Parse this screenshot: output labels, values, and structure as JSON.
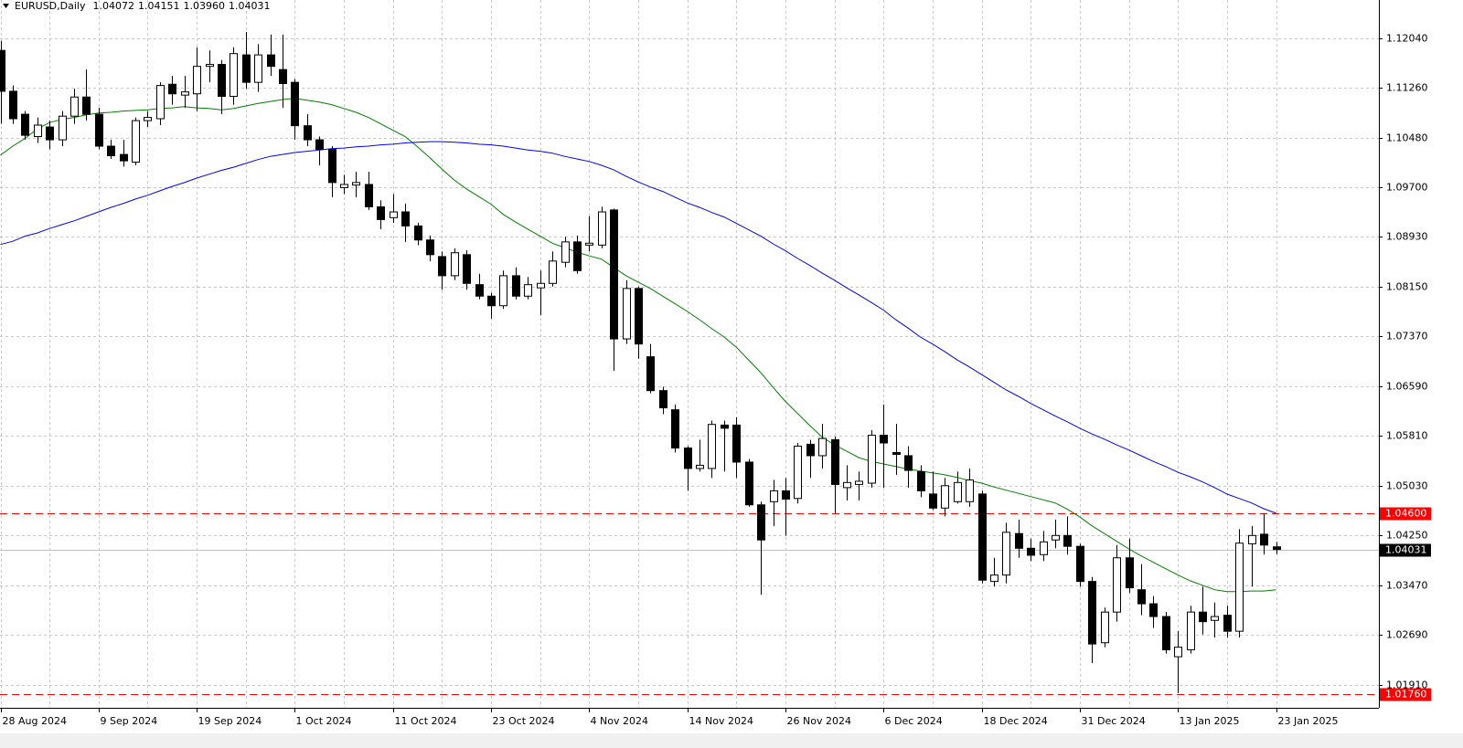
{
  "chart_data": {
    "type": "candlestick",
    "title": "EURUSD,Daily",
    "header_values": [
      "1.04072",
      "1.04151",
      "1.03960",
      "1.04031"
    ],
    "categories": [
      "28 Aug 2024",
      null,
      null,
      null,
      null,
      null,
      null,
      null,
      "9 Sep 2024",
      null,
      null,
      null,
      null,
      null,
      null,
      null,
      "19 Sep 2024",
      null,
      null,
      null,
      null,
      null,
      null,
      null,
      "1 Oct 2024",
      null,
      null,
      null,
      null,
      null,
      null,
      null,
      "11 Oct 2024",
      null,
      null,
      null,
      null,
      null,
      null,
      null,
      "23 Oct 2024",
      null,
      null,
      null,
      null,
      null,
      null,
      null,
      "4 Nov 2024",
      null,
      null,
      null,
      null,
      null,
      null,
      null,
      "14 Nov 2024",
      null,
      null,
      null,
      null,
      null,
      null,
      null,
      "26 Nov 2024",
      null,
      null,
      null,
      null,
      null,
      null,
      null,
      "6 Dec 2024",
      null,
      null,
      null,
      null,
      null,
      null,
      null,
      "18 Dec 2024",
      null,
      null,
      null,
      null,
      null,
      null,
      null,
      "31 Dec 2024",
      null,
      null,
      null,
      null,
      null,
      null,
      null,
      "13 Jan 2025",
      null,
      null,
      null,
      null,
      null,
      null,
      null,
      "23 Jan 2025"
    ],
    "open": [
      1.1185,
      1.1121,
      1.1085,
      1.105,
      1.1065,
      1.1045,
      1.1082,
      1.1112,
      1.1085,
      1.1035,
      1.1022,
      1.101,
      1.1075,
      1.1078,
      1.1132,
      1.1115,
      1.1117,
      1.116,
      1.1163,
      1.1113,
      1.1178,
      1.1135,
      1.1178,
      1.1155,
      1.1135,
      1.1067,
      1.1045,
      1.103,
      1.097,
      1.0974,
      1.0975,
      1.094,
      1.0923,
      1.0932,
      1.091,
      1.0888,
      1.0862,
      1.0832,
      1.0865,
      1.0818,
      1.08,
      1.0785,
      1.0832,
      1.08,
      1.0813,
      1.082,
      1.0853,
      1.0885,
      1.088,
      1.088,
      1.0935,
      1.0733,
      1.0812,
      1.0705,
      1.0652,
      1.0622,
      1.0562,
      1.053,
      1.053,
      1.0598,
      1.0598,
      1.054,
      1.0473,
      1.0478,
      1.0495,
      1.0483,
      1.0568,
      1.055,
      1.0575,
      1.05,
      1.0505,
      1.0507,
      1.0582,
      1.0555,
      1.055,
      1.0525,
      1.049,
      1.0468,
      1.0478,
      1.0478,
      1.049,
      1.0353,
      1.0363,
      1.0428,
      1.0405,
      1.0395,
      1.0418,
      1.0425,
      1.0408,
      1.0353,
      1.0257,
      1.0305,
      1.039,
      1.034,
      1.0318,
      1.0298,
      1.0235,
      1.0246,
      1.0305,
      1.0292,
      1.03,
      1.0275,
      1.0412,
      1.0427,
      1.04072
    ],
    "high": [
      1.12,
      1.113,
      1.109,
      1.108,
      1.1075,
      1.109,
      1.1125,
      1.1155,
      1.1095,
      1.1045,
      1.1045,
      1.108,
      1.109,
      1.1135,
      1.1145,
      1.1145,
      1.119,
      1.1185,
      1.117,
      1.119,
      1.1214,
      1.1195,
      1.121,
      1.121,
      1.114,
      1.1085,
      1.105,
      1.1035,
      1.099,
      1.0995,
      1.0995,
      1.095,
      1.096,
      1.0945,
      1.0915,
      1.0895,
      1.087,
      1.0875,
      1.0872,
      1.0835,
      1.0805,
      1.084,
      1.0845,
      1.083,
      1.084,
      1.087,
      1.0893,
      1.0895,
      1.0925,
      1.094,
      1.0937,
      1.0825,
      1.0815,
      1.0725,
      1.0658,
      1.063,
      1.0565,
      1.0575,
      1.0605,
      1.0605,
      1.061,
      1.0545,
      1.0478,
      1.0512,
      1.0515,
      1.057,
      1.0575,
      1.06,
      1.058,
      1.0535,
      1.0525,
      1.059,
      1.063,
      1.06,
      1.0565,
      1.0535,
      1.0525,
      1.0515,
      1.0525,
      1.053,
      1.0495,
      1.039,
      1.0445,
      1.045,
      1.042,
      1.0432,
      1.045,
      1.0455,
      1.0412,
      1.036,
      1.0312,
      1.041,
      1.042,
      1.038,
      1.033,
      1.0305,
      1.0275,
      1.0315,
      1.0345,
      1.032,
      1.0315,
      1.0435,
      1.044,
      1.046,
      1.04151
    ],
    "low": [
      1.107,
      1.107,
      1.1045,
      1.104,
      1.103,
      1.1035,
      1.107,
      1.1075,
      1.103,
      1.1015,
      1.1003,
      1.1005,
      1.1065,
      1.1068,
      1.11,
      1.1095,
      1.109,
      1.1135,
      1.1085,
      1.11,
      1.1125,
      1.112,
      1.1145,
      1.1095,
      1.1045,
      1.1035,
      1.1005,
      1.0955,
      1.096,
      1.0955,
      1.0935,
      1.0905,
      1.0915,
      1.0885,
      1.088,
      1.0855,
      1.081,
      1.0825,
      1.081,
      1.0795,
      1.0765,
      1.078,
      1.0795,
      1.0795,
      1.077,
      1.0815,
      1.0845,
      1.0835,
      1.087,
      1.0875,
      1.0683,
      1.0725,
      1.0702,
      1.0648,
      1.0615,
      1.0555,
      1.0495,
      1.0525,
      1.0515,
      1.0525,
      1.0515,
      1.047,
      1.0332,
      1.044,
      1.0425,
      1.0475,
      1.0515,
      1.053,
      1.046,
      1.048,
      1.048,
      1.05,
      1.05,
      1.052,
      1.05,
      1.0485,
      1.0465,
      1.0455,
      1.0475,
      1.047,
      1.035,
      1.0345,
      1.035,
      1.039,
      1.0385,
      1.0385,
      1.0405,
      1.0395,
      1.0345,
      1.0225,
      1.025,
      1.029,
      1.0335,
      1.03,
      1.028,
      1.024,
      1.0178,
      1.024,
      1.027,
      1.0265,
      1.0265,
      1.0265,
      1.0345,
      1.0395,
      1.0396
    ],
    "close": [
      1.1121,
      1.1078,
      1.1052,
      1.1068,
      1.1045,
      1.1082,
      1.1112,
      1.1085,
      1.1035,
      1.102,
      1.1012,
      1.1075,
      1.108,
      1.113,
      1.1117,
      1.112,
      1.116,
      1.1163,
      1.1113,
      1.118,
      1.1135,
      1.1178,
      1.116,
      1.1133,
      1.1067,
      1.1045,
      1.103,
      1.0978,
      1.0975,
      1.0978,
      1.094,
      1.092,
      1.0932,
      1.091,
      1.0888,
      1.0865,
      1.0832,
      1.0868,
      1.082,
      1.08,
      1.0785,
      1.0832,
      1.08,
      1.0818,
      1.082,
      1.0855,
      1.0885,
      1.084,
      1.0883,
      1.0932,
      1.0733,
      1.0812,
      1.0725,
      1.0652,
      1.0625,
      1.0562,
      1.053,
      1.0535,
      1.0599,
      1.0593,
      1.054,
      1.0473,
      1.0418,
      1.0495,
      1.0482,
      1.0565,
      1.055,
      1.0577,
      1.0505,
      1.0508,
      1.051,
      1.0582,
      1.057,
      1.0552,
      1.0527,
      1.0495,
      1.0468,
      1.0503,
      1.0508,
      1.0512,
      1.0355,
      1.0363,
      1.043,
      1.0405,
      1.0394,
      1.0415,
      1.0425,
      1.0408,
      1.0353,
      1.0255,
      1.0305,
      1.039,
      1.0343,
      1.0318,
      1.0298,
      1.0246,
      1.025,
      1.0305,
      1.029,
      1.0298,
      1.0275,
      1.0413,
      1.0425,
      1.041,
      1.04031
    ],
    "lines": [
      {
        "color": "#008000",
        "values": [
          1.1021,
          1.1035,
          1.1047,
          1.1062,
          1.1072,
          1.1077,
          1.108,
          1.1084,
          1.1087,
          1.1088,
          1.109,
          1.1091,
          1.1092,
          1.1094,
          1.1095,
          1.1097,
          1.1095,
          1.1094,
          1.1092,
          1.1094,
          1.1098,
          1.1102,
          1.1105,
          1.1108,
          1.111,
          1.1107,
          1.1104,
          1.11,
          1.1094,
          1.1088,
          1.108,
          1.107,
          1.106,
          1.105,
          1.1034,
          1.1017,
          1.0999,
          1.0982,
          1.0968,
          1.0956,
          1.0944,
          1.0928,
          1.0916,
          1.0905,
          1.0894,
          1.0883,
          1.0876,
          1.0869,
          1.0863,
          1.0858,
          1.0845,
          1.0832,
          1.0822,
          1.0812,
          1.08,
          1.0788,
          1.0776,
          1.0763,
          1.0749,
          1.0736,
          1.072,
          1.07,
          1.068,
          1.0657,
          1.0635,
          1.0616,
          1.0597,
          1.0579,
          1.0567,
          1.0557,
          1.0547,
          1.0541,
          1.0537,
          1.0533,
          1.0529,
          1.0526,
          1.0523,
          1.052,
          1.0516,
          1.0511,
          1.0507,
          1.0501,
          1.0496,
          1.0491,
          1.0486,
          1.0481,
          1.0476,
          1.0466,
          1.0454,
          1.044,
          1.0428,
          1.0416,
          1.0404,
          1.0393,
          1.0383,
          1.0373,
          1.0363,
          1.0354,
          1.0347,
          1.034,
          1.0337,
          1.0337,
          1.0338,
          1.0338,
          1.034
        ]
      },
      {
        "color": "#0000ff",
        "values": [
          1.0881,
          1.0886,
          1.0894,
          1.0899,
          1.0906,
          1.0912,
          1.0918,
          1.0925,
          1.0932,
          1.0939,
          1.0945,
          1.0952,
          1.0958,
          1.0965,
          1.0972,
          1.0978,
          1.0985,
          1.0991,
          1.0997,
          1.1002,
          1.1008,
          1.1014,
          1.1019,
          1.1022,
          1.1025,
          1.1027,
          1.1029,
          1.1031,
          1.1032,
          1.1034,
          1.1035,
          1.1037,
          1.1038,
          1.104,
          1.1041,
          1.1042,
          1.1042,
          1.1041,
          1.104,
          1.1038,
          1.1037,
          1.1035,
          1.1032,
          1.1029,
          1.1027,
          1.1024,
          1.1019,
          1.1015,
          1.1011,
          1.1005,
          1.0998,
          1.0988,
          1.0979,
          1.0971,
          1.0964,
          1.0955,
          1.0946,
          1.0939,
          1.0931,
          1.0924,
          1.0914,
          1.0904,
          1.0894,
          1.0882,
          1.0871,
          1.0859,
          1.0848,
          1.0836,
          1.0825,
          1.0813,
          1.0802,
          1.079,
          1.0778,
          1.0763,
          1.075,
          1.0736,
          1.0725,
          1.0713,
          1.07,
          1.0689,
          1.0677,
          1.0665,
          1.0653,
          1.0643,
          1.0632,
          1.0622,
          1.0612,
          1.0603,
          1.0593,
          1.0584,
          1.0576,
          1.0567,
          1.0559,
          1.055,
          1.0541,
          1.0533,
          1.0524,
          1.0517,
          1.0509,
          1.05,
          1.049,
          1.0483,
          1.0476,
          1.0467,
          1.046
        ]
      }
    ],
    "hlines": [
      {
        "value": 1.046,
        "label": "1.04600",
        "color": "#ff0000",
        "style": "dashed"
      },
      {
        "value": 1.0176,
        "label": "1.01760",
        "color": "#ff0000",
        "style": "dashed"
      },
      {
        "value": 1.04031,
        "label": "1.04031",
        "color": "#000000",
        "style": "solid"
      }
    ],
    "ylim": [
      1.0155,
      1.1264
    ],
    "yticks": [
      {
        "value": 1.1204,
        "label": "1.12040"
      },
      {
        "value": 1.1126,
        "label": "1.11260"
      },
      {
        "value": 1.1048,
        "label": "1.10480"
      },
      {
        "value": 1.097,
        "label": "1.09700"
      },
      {
        "value": 1.0893,
        "label": "1.08930"
      },
      {
        "value": 1.0815,
        "label": "1.08150"
      },
      {
        "value": 1.0737,
        "label": "1.07370"
      },
      {
        "value": 1.0659,
        "label": "1.06590"
      },
      {
        "value": 1.0581,
        "label": "1.05810"
      },
      {
        "value": 1.0503,
        "label": "1.05030"
      },
      {
        "value": 1.0425,
        "label": "1.04250"
      },
      {
        "value": 1.0347,
        "label": "1.03470"
      },
      {
        "value": 1.0269,
        "label": "1.02690"
      },
      {
        "value": 1.0191,
        "label": "1.01910"
      }
    ],
    "grid": true,
    "up_color": "#ffffff",
    "down_color": "#000000"
  }
}
